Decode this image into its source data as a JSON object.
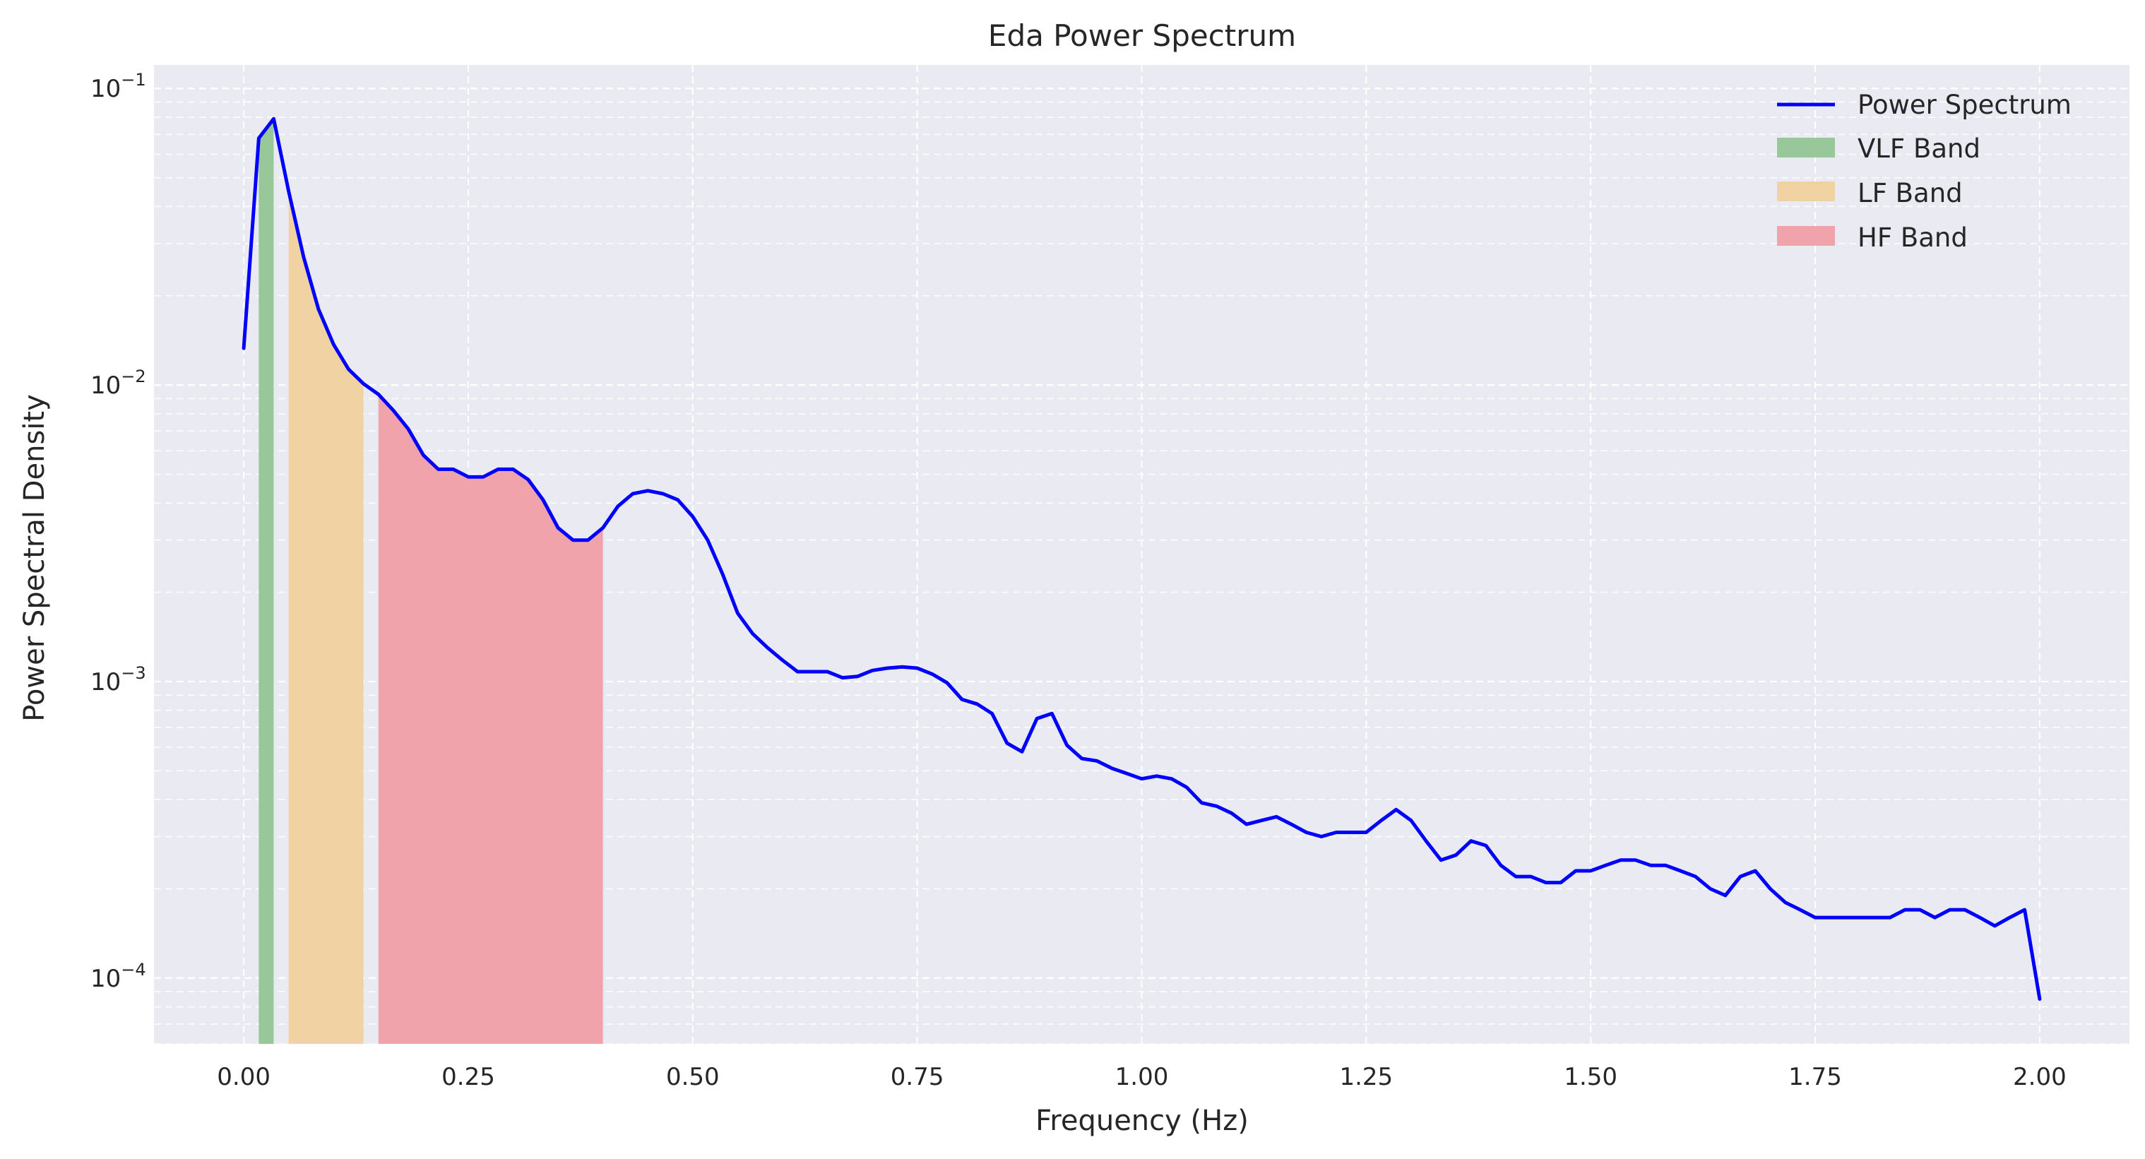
{
  "colors": {
    "background": "#EAEAF2",
    "grid": "#FFFFFF",
    "line": "#0000FF",
    "vlf": "#98C79A",
    "lf": "#F1D3A3",
    "hf": "#F0A3AB"
  },
  "chart_data": {
    "type": "line",
    "title": "Eda Power Spectrum",
    "xlabel": "Frequency (Hz)",
    "ylabel": "Power Spectral Density",
    "x_scale": "linear",
    "y_scale": "log",
    "xlim": [
      -0.1,
      2.1
    ],
    "ylim": [
      6e-05,
      0.12
    ],
    "x_ticks": [
      0.0,
      0.25,
      0.5,
      0.75,
      1.0,
      1.25,
      1.5,
      1.75,
      2.0
    ],
    "x_tick_labels": [
      "0.00",
      "0.25",
      "0.50",
      "0.75",
      "1.00",
      "1.25",
      "1.50",
      "1.75",
      "2.00"
    ],
    "y_ticks": [
      0.1,
      0.01,
      0.001,
      0.0001
    ],
    "y_tick_exponents": [
      "−1",
      "−2",
      "−3",
      "−4"
    ],
    "y_tick_base": "10",
    "grid": true,
    "grid_style": "dashed",
    "legend_position": "top-right",
    "series": [
      {
        "name": "Power Spectrum",
        "x": [
          0.0,
          0.0167,
          0.0333,
          0.05,
          0.0667,
          0.0833,
          0.1,
          0.1167,
          0.1333,
          0.15,
          0.1667,
          0.1833,
          0.2,
          0.2167,
          0.2333,
          0.25,
          0.2667,
          0.2833,
          0.3,
          0.3167,
          0.3333,
          0.35,
          0.3667,
          0.3833,
          0.4,
          0.4167,
          0.4333,
          0.45,
          0.4667,
          0.4833,
          0.5,
          0.5167,
          0.5333,
          0.55,
          0.5667,
          0.5833,
          0.6,
          0.6167,
          0.6333,
          0.65,
          0.6667,
          0.6833,
          0.7,
          0.7167,
          0.7333,
          0.75,
          0.7667,
          0.7833,
          0.8,
          0.8167,
          0.8333,
          0.85,
          0.8667,
          0.8833,
          0.9,
          0.9167,
          0.9333,
          0.95,
          0.9667,
          0.9833,
          1.0,
          1.0167,
          1.0333,
          1.05,
          1.0667,
          1.0833,
          1.1,
          1.1167,
          1.1333,
          1.15,
          1.1667,
          1.1833,
          1.2,
          1.2167,
          1.2333,
          1.25,
          1.2667,
          1.2833,
          1.3,
          1.3167,
          1.3333,
          1.35,
          1.3667,
          1.3833,
          1.4,
          1.4167,
          1.4333,
          1.45,
          1.4667,
          1.4833,
          1.5,
          1.5167,
          1.5333,
          1.55,
          1.5667,
          1.5833,
          1.6,
          1.6167,
          1.6333,
          1.65,
          1.6667,
          1.6833,
          1.7,
          1.7167,
          1.7333,
          1.75,
          1.7667,
          1.7833,
          1.8,
          1.8167,
          1.8333,
          1.85,
          1.8667,
          1.8833,
          1.9,
          1.9167,
          1.9333,
          1.95,
          1.9667,
          1.9833,
          2.0
        ],
        "y": [
          0.0133,
          0.068,
          0.079,
          0.045,
          0.027,
          0.018,
          0.0137,
          0.0113,
          0.0101,
          0.0093,
          0.0082,
          0.0071,
          0.0058,
          0.0052,
          0.0052,
          0.0049,
          0.0049,
          0.0052,
          0.0052,
          0.0048,
          0.0041,
          0.0033,
          0.003,
          0.003,
          0.0033,
          0.0039,
          0.0043,
          0.0044,
          0.0043,
          0.0041,
          0.0036,
          0.003,
          0.0023,
          0.0017,
          0.00145,
          0.0013,
          0.00118,
          0.00108,
          0.00108,
          0.00108,
          0.00103,
          0.00104,
          0.00109,
          0.00111,
          0.00112,
          0.00111,
          0.00106,
          0.00099,
          0.00087,
          0.00084,
          0.00078,
          0.00062,
          0.00058,
          0.00075,
          0.00078,
          0.00061,
          0.00055,
          0.00054,
          0.00051,
          0.00049,
          0.00047,
          0.00048,
          0.00047,
          0.00044,
          0.00039,
          0.00038,
          0.00036,
          0.00033,
          0.00034,
          0.00035,
          0.00033,
          0.00031,
          0.0003,
          0.00031,
          0.00031,
          0.00031,
          0.00034,
          0.00037,
          0.00034,
          0.00029,
          0.00025,
          0.00026,
          0.00029,
          0.00028,
          0.00024,
          0.00022,
          0.00022,
          0.00021,
          0.00021,
          0.00023,
          0.00023,
          0.00024,
          0.00025,
          0.00025,
          0.00024,
          0.00024,
          0.00023,
          0.00022,
          0.0002,
          0.00019,
          0.00022,
          0.00023,
          0.0002,
          0.00018,
          0.00017,
          0.00016,
          0.00016,
          0.00016,
          0.00016,
          0.00016,
          0.00016,
          0.00017,
          0.00017,
          0.00016,
          0.00017,
          0.00017,
          0.00016,
          0.00015,
          0.00016,
          0.00017,
          8.5e-05
        ]
      }
    ],
    "bands": [
      {
        "name": "VLF Band",
        "range": [
          0.0167,
          0.0333
        ],
        "color_key": "vlf"
      },
      {
        "name": "LF Band",
        "range": [
          0.05,
          0.1333
        ],
        "color_key": "lf"
      },
      {
        "name": "HF Band",
        "range": [
          0.15,
          0.4
        ],
        "color_key": "hf"
      }
    ]
  }
}
